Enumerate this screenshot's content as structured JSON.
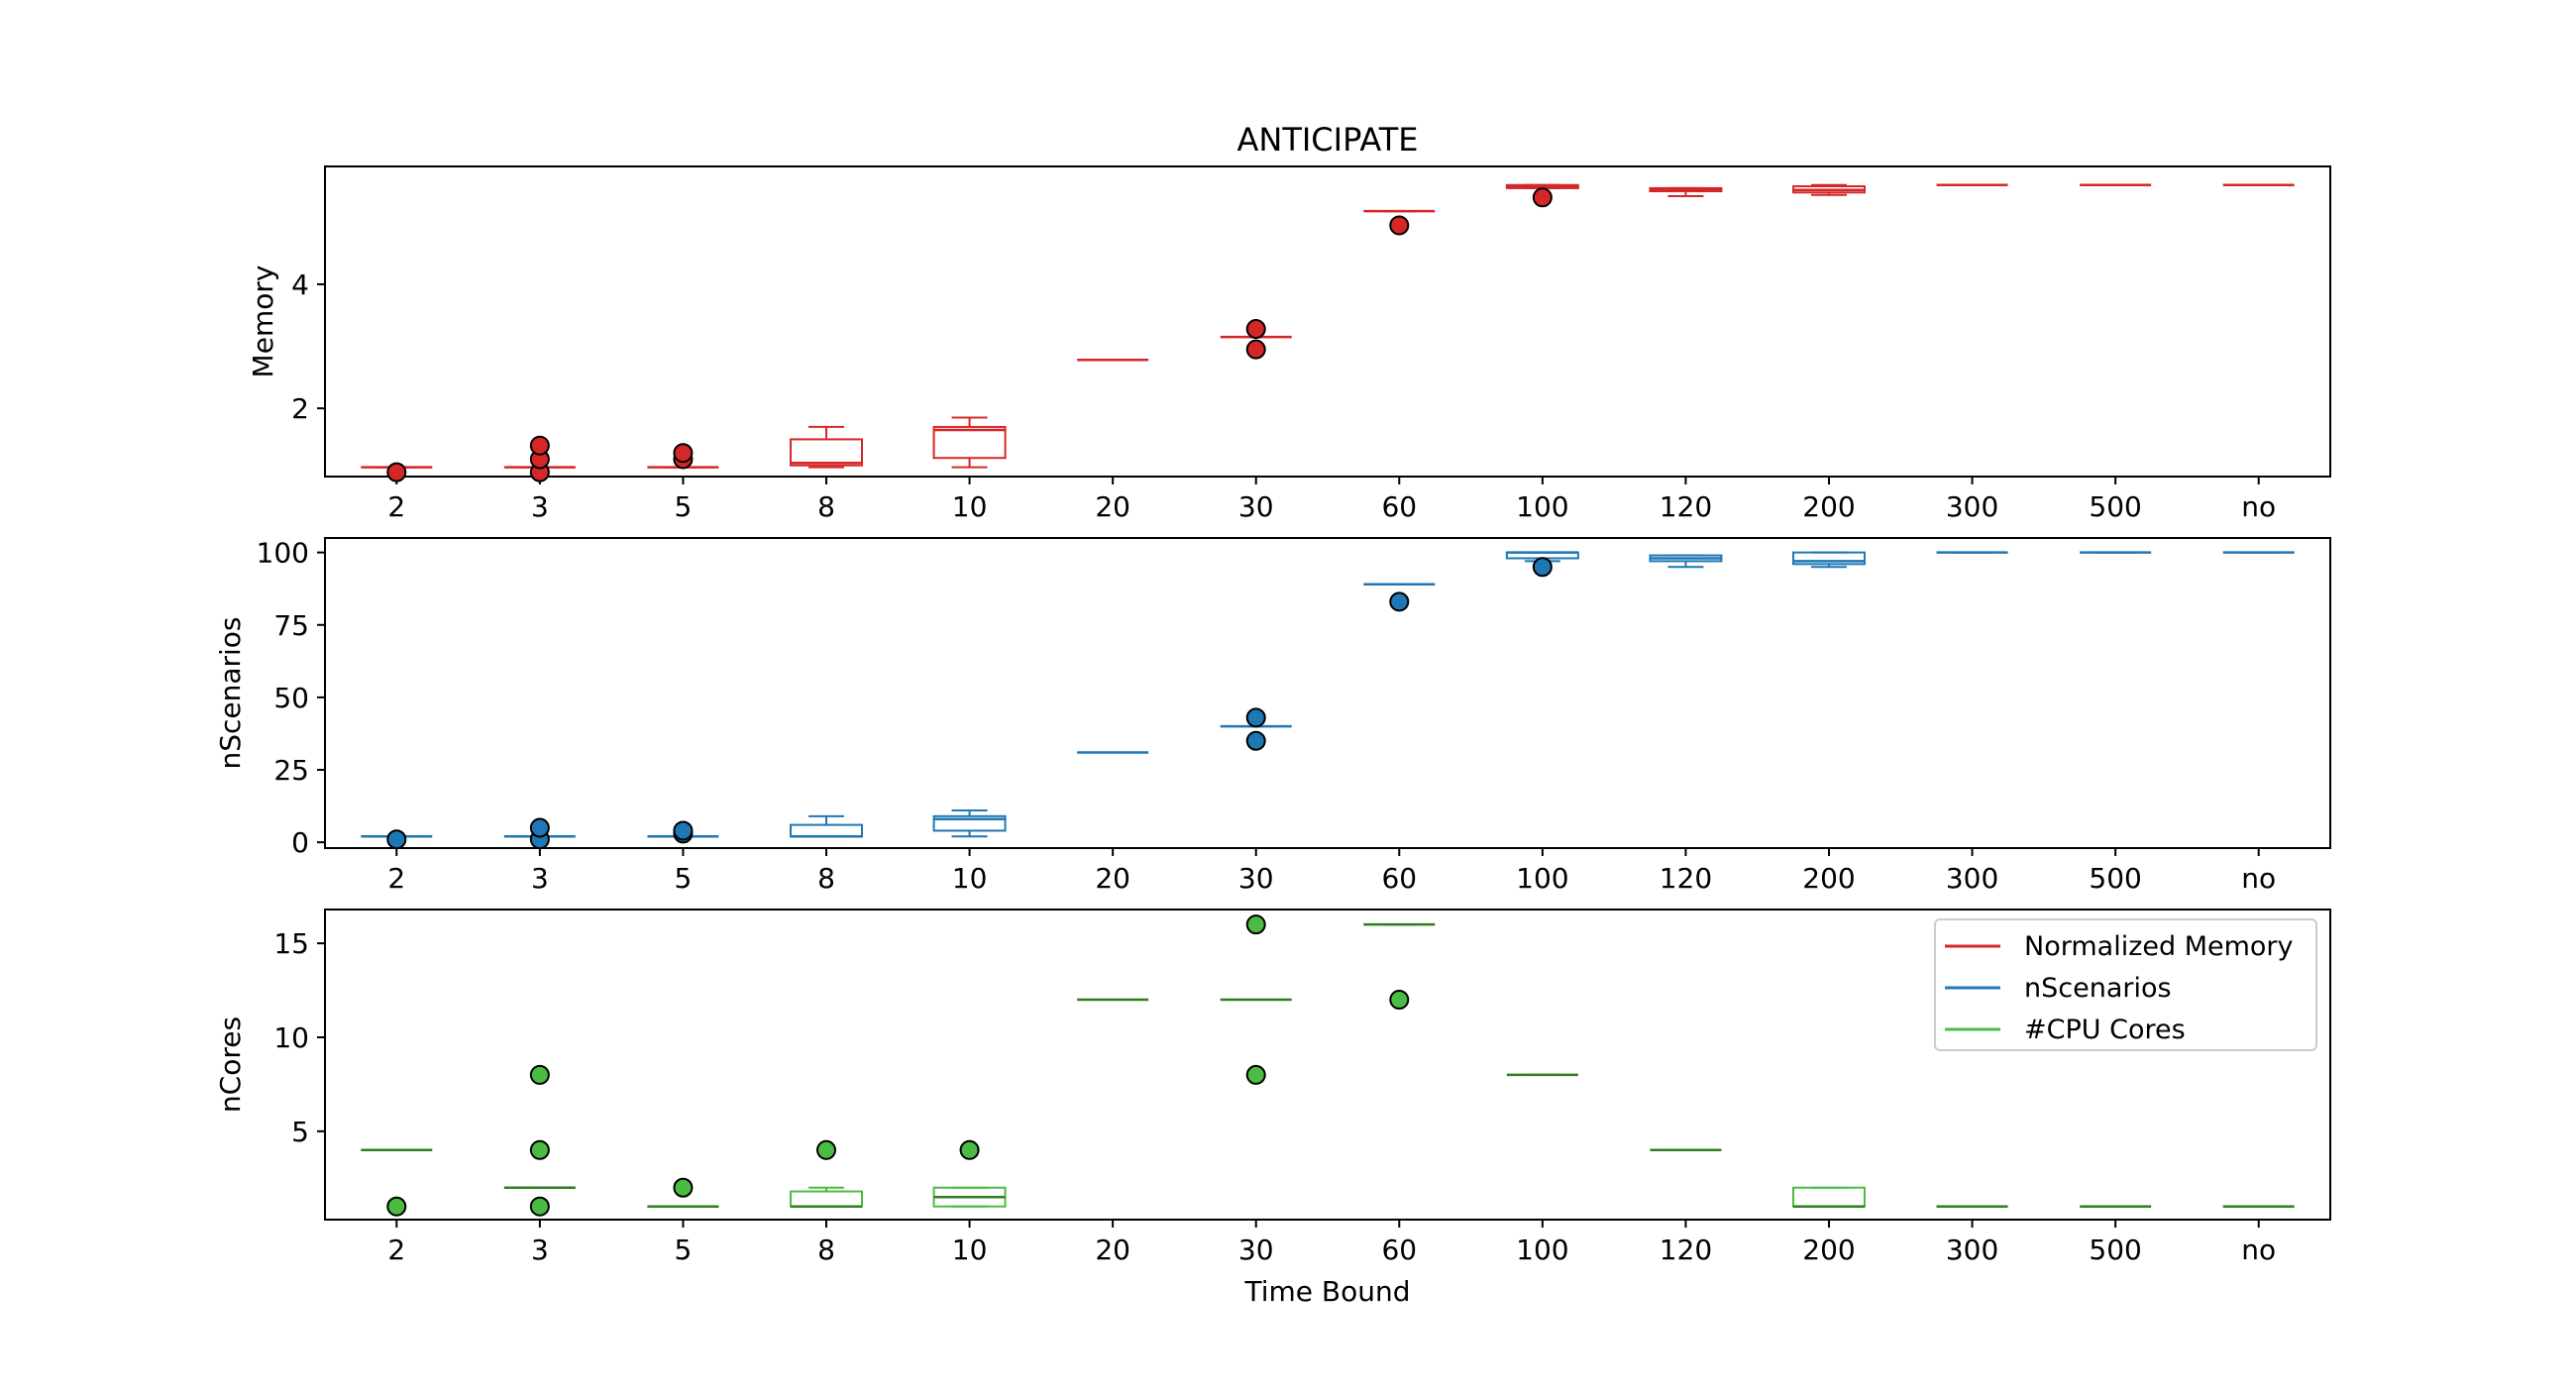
{
  "chart_data": [
    {
      "type": "box",
      "title": "ANTICIPATE",
      "ylabel": "Memory",
      "xlabel": "",
      "color": "#d62728",
      "categories": [
        "2",
        "3",
        "5",
        "8",
        "10",
        "20",
        "30",
        "60",
        "100",
        "120",
        "200",
        "300",
        "500",
        "no"
      ],
      "ylim": [
        0.9,
        5.9
      ],
      "yticks": [
        2,
        4
      ],
      "boxes": [
        {
          "whislo": 1.05,
          "q1": 1.05,
          "med": 1.05,
          "q3": 1.05,
          "whishi": 1.05,
          "fliers": [
            0.97
          ]
        },
        {
          "whislo": 1.05,
          "q1": 1.05,
          "med": 1.05,
          "q3": 1.05,
          "whishi": 1.05,
          "fliers": [
            0.97,
            1.18,
            1.4
          ]
        },
        {
          "whislo": 1.05,
          "q1": 1.05,
          "med": 1.05,
          "q3": 1.05,
          "whishi": 1.05,
          "fliers": [
            1.18,
            1.28
          ]
        },
        {
          "whislo": 1.05,
          "q1": 1.08,
          "med": 1.12,
          "q3": 1.5,
          "whishi": 1.7,
          "fliers": []
        },
        {
          "whislo": 1.05,
          "q1": 1.2,
          "med": 1.65,
          "q3": 1.7,
          "whishi": 1.85,
          "fliers": []
        },
        {
          "whislo": 2.78,
          "q1": 2.78,
          "med": 2.78,
          "q3": 2.78,
          "whishi": 2.78,
          "fliers": []
        },
        {
          "whislo": 3.15,
          "q1": 3.15,
          "med": 3.15,
          "q3": 3.15,
          "whishi": 3.15,
          "fliers": [
            2.95,
            3.28
          ]
        },
        {
          "whislo": 5.18,
          "q1": 5.18,
          "med": 5.18,
          "q3": 5.18,
          "whishi": 5.18,
          "fliers": [
            4.95
          ]
        },
        {
          "whislo": 5.55,
          "q1": 5.55,
          "med": 5.58,
          "q3": 5.6,
          "whishi": 5.6,
          "fliers": [
            5.4
          ]
        },
        {
          "whislo": 5.42,
          "q1": 5.5,
          "med": 5.52,
          "q3": 5.55,
          "whishi": 5.55,
          "fliers": []
        },
        {
          "whislo": 5.44,
          "q1": 5.48,
          "med": 5.52,
          "q3": 5.58,
          "whishi": 5.6,
          "fliers": []
        },
        {
          "whislo": 5.6,
          "q1": 5.6,
          "med": 5.6,
          "q3": 5.6,
          "whishi": 5.6,
          "fliers": []
        },
        {
          "whislo": 5.6,
          "q1": 5.6,
          "med": 5.6,
          "q3": 5.6,
          "whishi": 5.6,
          "fliers": []
        },
        {
          "whislo": 5.6,
          "q1": 5.6,
          "med": 5.6,
          "q3": 5.6,
          "whishi": 5.6,
          "fliers": []
        }
      ]
    },
    {
      "type": "box",
      "title": "",
      "ylabel": "nScenarios",
      "xlabel": "",
      "color": "#1f77b4",
      "categories": [
        "2",
        "3",
        "5",
        "8",
        "10",
        "20",
        "30",
        "60",
        "100",
        "120",
        "200",
        "300",
        "500",
        "no"
      ],
      "ylim": [
        -2,
        105
      ],
      "yticks": [
        0,
        25,
        50,
        75,
        100
      ],
      "boxes": [
        {
          "whislo": 2,
          "q1": 2,
          "med": 2,
          "q3": 2,
          "whishi": 2,
          "fliers": [
            1
          ]
        },
        {
          "whislo": 2,
          "q1": 2,
          "med": 2,
          "q3": 2,
          "whishi": 2,
          "fliers": [
            1,
            5
          ]
        },
        {
          "whislo": 2,
          "q1": 2,
          "med": 2,
          "q3": 2,
          "whishi": 2,
          "fliers": [
            3,
            4
          ]
        },
        {
          "whislo": 2,
          "q1": 2,
          "med": 2,
          "q3": 6,
          "whishi": 9,
          "fliers": []
        },
        {
          "whislo": 2,
          "q1": 4,
          "med": 8,
          "q3": 9,
          "whishi": 11,
          "fliers": []
        },
        {
          "whislo": 31,
          "q1": 31,
          "med": 31,
          "q3": 31,
          "whishi": 31,
          "fliers": []
        },
        {
          "whislo": 40,
          "q1": 40,
          "med": 40,
          "q3": 40,
          "whishi": 40,
          "fliers": [
            35,
            43
          ]
        },
        {
          "whislo": 89,
          "q1": 89,
          "med": 89,
          "q3": 89,
          "whishi": 89,
          "fliers": [
            83
          ]
        },
        {
          "whislo": 97,
          "q1": 98,
          "med": 100,
          "q3": 100,
          "whishi": 100,
          "fliers": [
            95
          ]
        },
        {
          "whislo": 95,
          "q1": 97,
          "med": 98,
          "q3": 99,
          "whishi": 99,
          "fliers": []
        },
        {
          "whislo": 95,
          "q1": 96,
          "med": 97,
          "q3": 100,
          "whishi": 100,
          "fliers": []
        },
        {
          "whislo": 100,
          "q1": 100,
          "med": 100,
          "q3": 100,
          "whishi": 100,
          "fliers": []
        },
        {
          "whislo": 100,
          "q1": 100,
          "med": 100,
          "q3": 100,
          "whishi": 100,
          "fliers": []
        },
        {
          "whislo": 100,
          "q1": 100,
          "med": 100,
          "q3": 100,
          "whishi": 100,
          "fliers": []
        }
      ]
    },
    {
      "type": "box",
      "title": "",
      "ylabel": "nCores",
      "xlabel": "Time Bound",
      "color": "#4cbb43",
      "categories": [
        "2",
        "3",
        "5",
        "8",
        "10",
        "20",
        "30",
        "60",
        "100",
        "120",
        "200",
        "300",
        "500",
        "no"
      ],
      "ylim": [
        0.3,
        16.8
      ],
      "yticks": [
        5,
        10,
        15
      ],
      "boxes": [
        {
          "whislo": 4,
          "q1": 4,
          "med": 4,
          "q3": 4,
          "whishi": 4,
          "fliers": [
            1
          ]
        },
        {
          "whislo": 2,
          "q1": 2,
          "med": 2,
          "q3": 2,
          "whishi": 2,
          "fliers": [
            1,
            4,
            8
          ]
        },
        {
          "whislo": 1,
          "q1": 1,
          "med": 1,
          "q3": 1,
          "whishi": 1,
          "fliers": [
            2
          ]
        },
        {
          "whislo": 1,
          "q1": 1,
          "med": 1,
          "q3": 1.8,
          "whishi": 2,
          "fliers": [
            4
          ]
        },
        {
          "whislo": 1,
          "q1": 1,
          "med": 1.5,
          "q3": 2,
          "whishi": 2,
          "fliers": [
            4
          ]
        },
        {
          "whislo": 12,
          "q1": 12,
          "med": 12,
          "q3": 12,
          "whishi": 12,
          "fliers": []
        },
        {
          "whislo": 12,
          "q1": 12,
          "med": 12,
          "q3": 12,
          "whishi": 12,
          "fliers": [
            8,
            16
          ]
        },
        {
          "whislo": 16,
          "q1": 16,
          "med": 16,
          "q3": 16,
          "whishi": 16,
          "fliers": [
            12
          ]
        },
        {
          "whislo": 8,
          "q1": 8,
          "med": 8,
          "q3": 8,
          "whishi": 8,
          "fliers": []
        },
        {
          "whislo": 4,
          "q1": 4,
          "med": 4,
          "q3": 4,
          "whishi": 4,
          "fliers": []
        },
        {
          "whislo": 1,
          "q1": 1,
          "med": 1,
          "q3": 2,
          "whishi": 2,
          "fliers": []
        },
        {
          "whislo": 1,
          "q1": 1,
          "med": 1,
          "q3": 1,
          "whishi": 1,
          "fliers": []
        },
        {
          "whislo": 1,
          "q1": 1,
          "med": 1,
          "q3": 1,
          "whishi": 1,
          "fliers": []
        },
        {
          "whislo": 1,
          "q1": 1,
          "med": 1,
          "q3": 1,
          "whishi": 1,
          "fliers": []
        }
      ],
      "legend": {
        "placement": "top-right",
        "entries": [
          {
            "label": "Normalized Memory",
            "color": "#d62728"
          },
          {
            "label": "nScenarios",
            "color": "#1f77b4"
          },
          {
            "label": "#CPU Cores",
            "color": "#4cbb43"
          }
        ]
      }
    }
  ],
  "colors": {
    "median_line": "#2e7d1f",
    "box_outline": "series color",
    "flier_edge": "#000000"
  }
}
